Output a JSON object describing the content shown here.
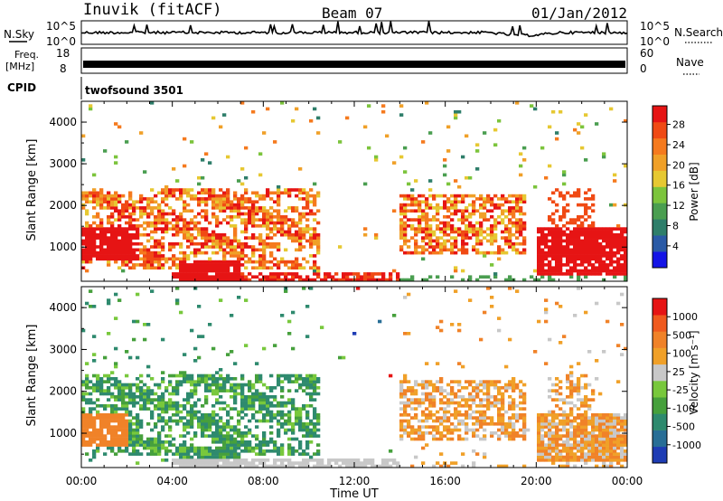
{
  "header": {
    "radar": "Inuvik (fitACF)",
    "beam": "Beam 07",
    "date": "01/Jan/2012"
  },
  "aux_panels": {
    "nsky_label": "N.Sky",
    "nsky_ticks": [
      "10^5",
      "10^0"
    ],
    "nsearch_label": "N.Search",
    "nsearch_ticks": [
      "10^5",
      "10^0"
    ],
    "freq_label": "Freq.",
    "freq_unit": "[MHz]",
    "freq_ticks": [
      "18",
      "8"
    ],
    "nave_label": "Nave",
    "nave_ticks": [
      "60",
      "0"
    ],
    "cpid_label": "CPID",
    "cpid_text": "twofsound 3501"
  },
  "chart_data": [
    {
      "type": "heatmap",
      "name": "power",
      "ylabel": "Slant Range [km]",
      "xlabel": "",
      "ylim": [
        180,
        4500
      ],
      "yticks": [
        "1000",
        "2000",
        "3000",
        "4000"
      ],
      "xticks": [
        "00:00",
        "04:00",
        "08:00",
        "12:00",
        "16:00",
        "20:00",
        "00:00"
      ],
      "colorbar": {
        "label": "Power [dB]",
        "ticks": [
          "4",
          "8",
          "12",
          "16",
          "20",
          "24",
          "28"
        ],
        "colors": [
          "#1414e6",
          "#2a5aa6",
          "#2e7e6a",
          "#4a9e50",
          "#7cc43c",
          "#e6c832",
          "#f0a028",
          "#f57a1e",
          "#f04a14",
          "#e61414"
        ]
      }
    },
    {
      "type": "heatmap",
      "name": "velocity",
      "ylabel": "Slant Range [km]",
      "xlabel": "Time UT",
      "ylim": [
        180,
        4500
      ],
      "yticks": [
        "1000",
        "2000",
        "3000",
        "4000"
      ],
      "xticks": [
        "00:00",
        "04:00",
        "08:00",
        "12:00",
        "16:00",
        "20:00",
        "00:00"
      ],
      "colorbar": {
        "label": "Velocity [m s⁻¹]",
        "ticks": [
          "1000",
          "500",
          "100",
          "25",
          "-25",
          "-100",
          "-500",
          "-1000"
        ],
        "colors": [
          "#1e3cb4",
          "#286e96",
          "#2e8a6e",
          "#46a03c",
          "#78c83c",
          "#c8c8c8",
          "#f0a028",
          "#f08228",
          "#f05a1e",
          "#e61414"
        ]
      }
    }
  ]
}
